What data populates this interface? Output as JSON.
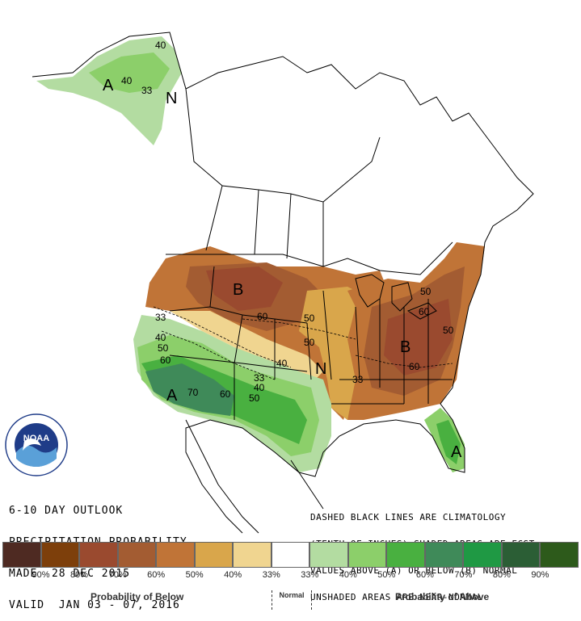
{
  "map_labels": {
    "contours": [
      "40",
      "40",
      "33",
      "33",
      "40",
      "50",
      "60",
      "70",
      "60",
      "50",
      "33",
      "40",
      "50",
      "60",
      "50",
      "40",
      "33",
      "50",
      "60",
      "60",
      "50"
    ],
    "letters": [
      "A",
      "N",
      "B",
      "N",
      "B",
      "A",
      "A"
    ]
  },
  "title": {
    "line1": "6-10 DAY OUTLOOK",
    "line2": "PRECIPITATION PROBABILITY",
    "line3": "MADE  28 DEC 2015",
    "line4": "VALID  JAN 03 - 07, 2016"
  },
  "notes": {
    "line1": "DASHED BLACK LINES ARE CLIMATOLOGY",
    "line2": "(TENTH OF INCHES) SHADED AREAS ARE FCST",
    "line3": "VALUES ABOVE (A) OR BELOW (B) NORMAL",
    "line4": "UNSHADED AREAS ARE NEAR-NORMAL"
  },
  "logo": {
    "text": "NOAA"
  },
  "legend": {
    "colors": [
      "#4e2a22",
      "#7d3f0b",
      "#9a4a2f",
      "#a35c32",
      "#c07437",
      "#d9a64b",
      "#f0d590",
      "#ffffff",
      "#b3dca1",
      "#8ccf6a",
      "#49b040",
      "#3f8a59",
      "#1f9944",
      "#2b5e35",
      "#2d5a1b"
    ],
    "ticks": [
      "90%",
      "80%",
      "70%",
      "60%",
      "50%",
      "40%",
      "33%",
      "33%",
      "40%",
      "50%",
      "60%",
      "70%",
      "80%",
      "90%"
    ],
    "below_label": "Probability of Below",
    "normal_label": "Normal",
    "above_label": "Probability of Above"
  }
}
